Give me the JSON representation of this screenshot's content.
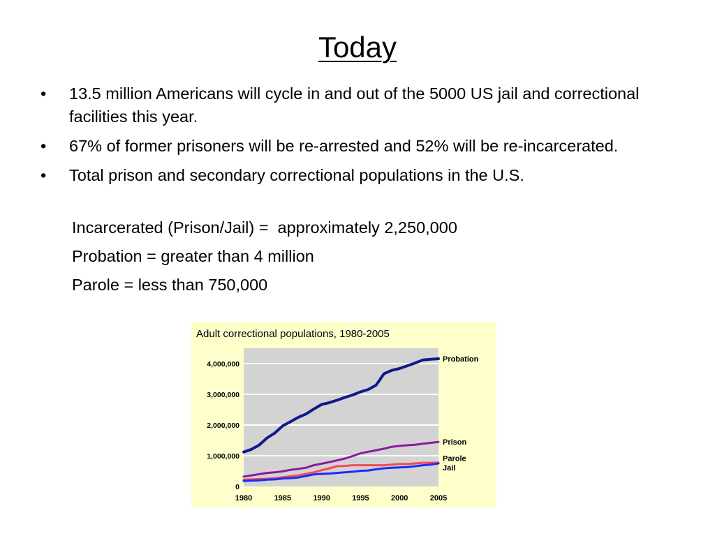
{
  "slide": {
    "title": "Today",
    "bullet_marker": "•",
    "bullets": [
      "13.5 million Americans will cycle in and out of the 5000 US jail and correctional facilities this year.",
      "67% of former prisoners will be re-arrested and 52% will be re-incarcerated.",
      "Total prison and secondary correctional populations in the U.S."
    ],
    "sub_lines": [
      "Incarcerated (Prison/Jail) =  approximately 2,250,000",
      "Probation = greater than 4 million",
      "Parole = less than 750,000"
    ]
  },
  "colors": {
    "chart_background": "#FFFFCC",
    "plot_background": "#D3D3D3",
    "gridline": "#FFFFFF",
    "probation": "#0D1A8A",
    "prison": "#8B1A9B",
    "parole": "#F24B52",
    "jail": "#1A2BFF"
  },
  "chart_data": {
    "type": "line",
    "title": "Adult correctional populations, 1980-2005",
    "xlabel": "",
    "ylabel": "",
    "xlim": [
      1980,
      2005
    ],
    "ylim": [
      0,
      4500000
    ],
    "x_ticks": [
      "1980",
      "1985",
      "1990",
      "1995",
      "2000",
      "2005"
    ],
    "y_ticks": [
      "0",
      "1,000,000",
      "2,000,000",
      "3,000,000",
      "4,000,000"
    ],
    "grid": true,
    "legend": "labels at line ends, right",
    "x": [
      1980,
      1981,
      1982,
      1983,
      1984,
      1985,
      1986,
      1987,
      1988,
      1989,
      1990,
      1991,
      1992,
      1993,
      1994,
      1995,
      1996,
      1997,
      1998,
      1999,
      2000,
      2001,
      2002,
      2003,
      2004,
      2005
    ],
    "series": [
      {
        "name": "Probation",
        "values": [
          1120000,
          1210000,
          1350000,
          1580000,
          1740000,
          1970000,
          2110000,
          2250000,
          2360000,
          2520000,
          2670000,
          2730000,
          2810000,
          2900000,
          2980000,
          3080000,
          3160000,
          3300000,
          3670000,
          3780000,
          3840000,
          3930000,
          4020000,
          4120000,
          4140000,
          4160000
        ]
      },
      {
        "name": "Prison",
        "values": [
          320000,
          360000,
          400000,
          440000,
          460000,
          490000,
          540000,
          570000,
          610000,
          690000,
          740000,
          790000,
          850000,
          910000,
          990000,
          1080000,
          1130000,
          1180000,
          1230000,
          1290000,
          1320000,
          1340000,
          1360000,
          1390000,
          1420000,
          1450000
        ]
      },
      {
        "name": "Parole",
        "values": [
          220000,
          230000,
          240000,
          250000,
          270000,
          300000,
          330000,
          360000,
          410000,
          460000,
          530000,
          590000,
          660000,
          670000,
          690000,
          690000,
          690000,
          690000,
          690000,
          710000,
          730000,
          730000,
          750000,
          770000,
          770000,
          780000
        ]
      },
      {
        "name": "Jail",
        "values": [
          180000,
          190000,
          200000,
          220000,
          230000,
          260000,
          270000,
          290000,
          340000,
          390000,
          410000,
          420000,
          440000,
          460000,
          480000,
          510000,
          520000,
          560000,
          590000,
          610000,
          620000,
          630000,
          660000,
          690000,
          710000,
          750000
        ]
      }
    ]
  }
}
